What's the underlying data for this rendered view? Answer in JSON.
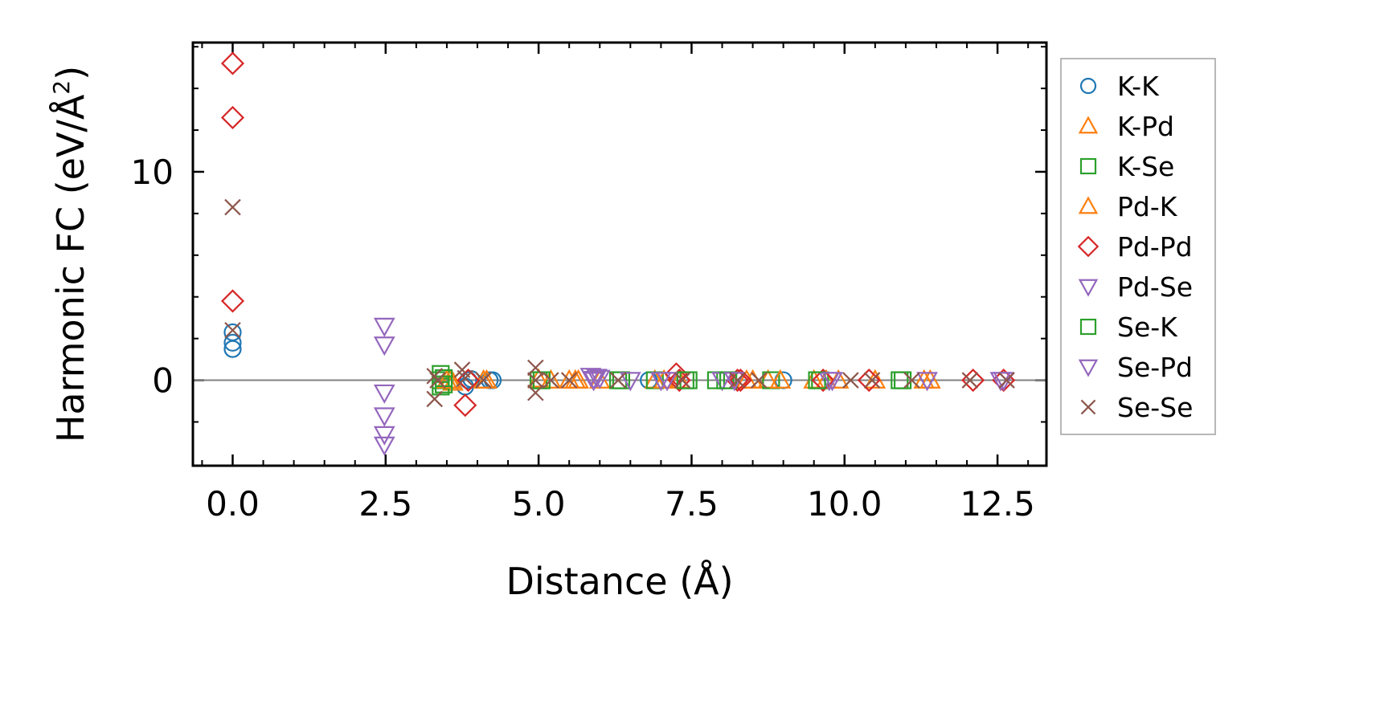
{
  "chart_data": {
    "type": "scatter",
    "xlabel": "Distance (Å)",
    "ylabel_main": "Harmonic FC (eV/Å",
    "ylabel_sup": "2",
    "ylabel_close": ")",
    "xlim": [
      -0.65,
      13.3
    ],
    "ylim": [
      -4.1,
      16.2
    ],
    "x_ticks": [
      0.0,
      2.5,
      5.0,
      7.5,
      10.0,
      12.5
    ],
    "x_tick_labels": [
      "0.0",
      "2.5",
      "5.0",
      "7.5",
      "10.0",
      "12.5"
    ],
    "y_ticks": [
      0,
      10
    ],
    "y_tick_labels": [
      "0",
      "10"
    ],
    "zero_line": 0,
    "legend_position": "outside-right",
    "series": [
      {
        "name": "K-K",
        "marker": "circle",
        "color": "#1f77b4",
        "points": [
          [
            0,
            1.5
          ],
          [
            0,
            1.8
          ],
          [
            0,
            2.3
          ],
          [
            3.8,
            -0.3
          ],
          [
            3.85,
            0
          ],
          [
            3.9,
            0.05
          ],
          [
            4.2,
            0
          ],
          [
            4.25,
            0
          ],
          [
            6.8,
            0
          ],
          [
            9.0,
            0
          ]
        ]
      },
      {
        "name": "K-Pd",
        "marker": "triangle-up",
        "color": "#ff7f0e",
        "points": [
          [
            3.55,
            0
          ],
          [
            3.6,
            -0.1
          ],
          [
            4.1,
            0
          ],
          [
            5.0,
            0.05
          ],
          [
            5.5,
            0
          ],
          [
            5.6,
            0
          ],
          [
            6.0,
            0
          ],
          [
            6.9,
            0
          ],
          [
            7.3,
            0
          ],
          [
            8.5,
            0
          ],
          [
            8.75,
            0
          ],
          [
            9.5,
            0
          ],
          [
            9.9,
            0
          ],
          [
            10.5,
            0
          ],
          [
            11.4,
            0
          ]
        ]
      },
      {
        "name": "K-Se",
        "marker": "square",
        "color": "#2ca02c",
        "points": [
          [
            3.4,
            0.3
          ],
          [
            3.4,
            0
          ],
          [
            3.4,
            -0.3
          ],
          [
            5.0,
            0
          ],
          [
            6.3,
            0
          ],
          [
            6.9,
            0
          ],
          [
            7.45,
            0
          ],
          [
            7.9,
            0
          ],
          [
            8.05,
            0
          ],
          [
            8.8,
            0
          ],
          [
            9.6,
            0
          ],
          [
            10.9,
            0
          ]
        ]
      },
      {
        "name": "Pd-K",
        "marker": "triangle-up",
        "color": "#ff7f0e",
        "points": [
          [
            3.5,
            0
          ],
          [
            4.15,
            0
          ],
          [
            5.2,
            0
          ],
          [
            5.65,
            0
          ],
          [
            7.05,
            0
          ],
          [
            8.4,
            0
          ],
          [
            8.95,
            0
          ],
          [
            9.7,
            0
          ],
          [
            11.3,
            0
          ]
        ]
      },
      {
        "name": "Pd-Pd",
        "marker": "diamond",
        "color": "#d62728",
        "points": [
          [
            0,
            15.2
          ],
          [
            0,
            12.6
          ],
          [
            0,
            3.8
          ],
          [
            3.8,
            -1.2
          ],
          [
            3.85,
            0
          ],
          [
            7.25,
            0.3
          ],
          [
            7.3,
            0
          ],
          [
            8.25,
            0
          ],
          [
            8.3,
            0
          ],
          [
            9.65,
            0
          ],
          [
            10.4,
            0
          ],
          [
            12.1,
            0
          ],
          [
            12.6,
            0
          ]
        ]
      },
      {
        "name": "Pd-Se",
        "marker": "triangle-down",
        "color": "#9467bd",
        "points": [
          [
            2.48,
            2.6
          ],
          [
            2.48,
            1.7
          ],
          [
            2.48,
            -0.6
          ],
          [
            2.48,
            -1.7
          ],
          [
            2.48,
            -2.6
          ],
          [
            2.48,
            -3.1
          ],
          [
            5.85,
            0.2
          ],
          [
            5.9,
            0
          ],
          [
            6.0,
            0.1
          ],
          [
            7.0,
            0
          ],
          [
            8.0,
            0
          ],
          [
            9.75,
            0
          ],
          [
            12.55,
            0
          ]
        ]
      },
      {
        "name": "Se-K",
        "marker": "square",
        "color": "#2ca02c",
        "points": [
          [
            3.45,
            -0.2
          ],
          [
            3.45,
            0.1
          ],
          [
            5.05,
            0
          ],
          [
            6.35,
            0
          ],
          [
            7.4,
            0
          ],
          [
            8.1,
            0
          ],
          [
            9.55,
            0
          ],
          [
            10.95,
            0
          ]
        ]
      },
      {
        "name": "Se-Pd",
        "marker": "triangle-down",
        "color": "#9467bd",
        "points": [
          [
            5.95,
            0.15
          ],
          [
            5.9,
            0.05
          ],
          [
            6.5,
            0
          ],
          [
            7.1,
            0
          ],
          [
            8.2,
            0
          ],
          [
            9.8,
            0
          ],
          [
            11.35,
            0
          ],
          [
            12.6,
            0
          ]
        ]
      },
      {
        "name": "Se-Se",
        "marker": "x",
        "color": "#8c564b",
        "points": [
          [
            0,
            8.3
          ],
          [
            0,
            2.4
          ],
          [
            3.3,
            -0.9
          ],
          [
            3.3,
            0.2
          ],
          [
            3.35,
            0
          ],
          [
            3.75,
            0.5
          ],
          [
            3.8,
            0.1
          ],
          [
            4.1,
            0
          ],
          [
            4.95,
            0.6
          ],
          [
            4.95,
            0
          ],
          [
            4.95,
            -0.6
          ],
          [
            5.2,
            0
          ],
          [
            5.5,
            0
          ],
          [
            6.3,
            0
          ],
          [
            7.35,
            0
          ],
          [
            8.25,
            0
          ],
          [
            8.6,
            0
          ],
          [
            10.1,
            0
          ],
          [
            10.45,
            0
          ],
          [
            11.1,
            0
          ],
          [
            12.05,
            0
          ],
          [
            12.65,
            0
          ]
        ]
      }
    ]
  }
}
